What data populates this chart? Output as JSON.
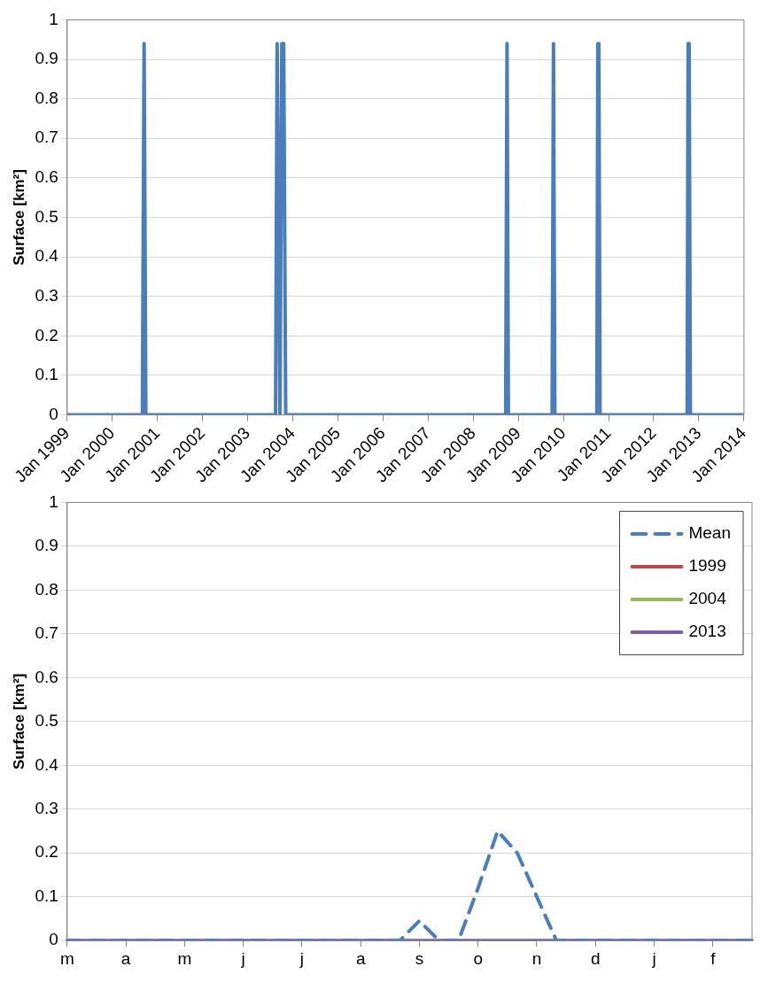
{
  "chart_data": [
    {
      "type": "line",
      "ylabel": "Surface [km²]",
      "xlim": [
        "1999-01",
        "2014-01"
      ],
      "ylim": [
        0,
        1
      ],
      "xticks": [
        {
          "value": "1999-01",
          "label": "Jan 1999"
        },
        {
          "value": "2000-01",
          "label": "Jan 2000"
        },
        {
          "value": "2001-01",
          "label": "Jan 2001"
        },
        {
          "value": "2002-01",
          "label": "Jan 2002"
        },
        {
          "value": "2003-01",
          "label": "Jan 2003"
        },
        {
          "value": "2004-01",
          "label": "Jan 2004"
        },
        {
          "value": "2005-01",
          "label": "Jan 2005"
        },
        {
          "value": "2006-01",
          "label": "Jan 2006"
        },
        {
          "value": "2007-01",
          "label": "Jan 2007"
        },
        {
          "value": "2008-01",
          "label": "Jan 2008"
        },
        {
          "value": "2009-01",
          "label": "Jan 2009"
        },
        {
          "value": "2010-01",
          "label": "Jan 2010"
        },
        {
          "value": "2011-01",
          "label": "Jan 2011"
        },
        {
          "value": "2012-01",
          "label": "Jan 2012"
        },
        {
          "value": "2013-01",
          "label": "Jan 2013"
        },
        {
          "value": "2014-01",
          "label": "Jan 2014"
        }
      ],
      "yticks": [
        0,
        0.1,
        0.2,
        0.3,
        0.4,
        0.5,
        0.6,
        0.7,
        0.8,
        0.9,
        1
      ],
      "grid": "y",
      "legend": false,
      "series": [
        {
          "color": "#4a7ebb",
          "x": [
            "1999-01-01",
            "2000-09-01",
            "2000-09-15",
            "2000-09-29",
            "2003-08-15",
            "2003-08-28",
            "2003-09-20",
            "2003-10-05",
            "2003-10-20",
            "2003-11-05",
            "2008-09-20",
            "2008-10-01",
            "2008-10-12",
            "2009-10-01",
            "2009-10-12",
            "2009-10-23",
            "2010-09-28",
            "2010-10-06",
            "2010-10-14",
            "2010-10-24",
            "2012-09-28",
            "2012-10-06",
            "2012-10-14",
            "2012-10-24",
            "2014-01-01"
          ],
          "values": [
            0,
            0,
            0.94,
            0,
            0,
            0.94,
            0,
            0.94,
            0.94,
            0,
            0,
            0.94,
            0,
            0,
            0.94,
            0,
            0,
            0.94,
            0.94,
            0,
            0,
            0.94,
            0.94,
            0,
            0
          ]
        }
      ]
    },
    {
      "type": "line",
      "ylabel": "Surface [km²]",
      "ylim": [
        0,
        1
      ],
      "categories": [
        "m",
        null,
        null,
        "a",
        null,
        null,
        "m",
        null,
        null,
        "j",
        null,
        null,
        "j",
        null,
        null,
        "a",
        null,
        null,
        "s",
        null,
        null,
        "o",
        null,
        null,
        "n",
        null,
        null,
        "d",
        null,
        null,
        "j",
        null,
        null,
        "f",
        null,
        null
      ],
      "yticks": [
        0,
        0.1,
        0.2,
        0.3,
        0.4,
        0.5,
        0.6,
        0.7,
        0.8,
        0.9,
        1
      ],
      "grid": "y",
      "legend": "top right",
      "series": [
        {
          "name": "Mean",
          "color": "#4a7ebb",
          "line_style": "dashed",
          "values": [
            0,
            0,
            0,
            0,
            0,
            0,
            0,
            0,
            0,
            0,
            0,
            0,
            0,
            0,
            0,
            0,
            0,
            0,
            0.045,
            0,
            0,
            0.12,
            0.25,
            0.2,
            0.1,
            0,
            0,
            0,
            0,
            0,
            0,
            0,
            0,
            0,
            0,
            0
          ]
        },
        {
          "name": "1999",
          "color": "#be4b48",
          "values": [
            null,
            null,
            null,
            null,
            null,
            null,
            null,
            null,
            null,
            null,
            null,
            null,
            null,
            null,
            null,
            null,
            null,
            null,
            null,
            null,
            null,
            null,
            null,
            null,
            null,
            null,
            null,
            null,
            null,
            null,
            null,
            null,
            null,
            null,
            null,
            null
          ]
        },
        {
          "name": "2004",
          "color": "#98b954",
          "values": [
            null,
            null,
            null,
            null,
            null,
            null,
            null,
            null,
            null,
            null,
            null,
            null,
            null,
            null,
            null,
            null,
            null,
            null,
            null,
            null,
            null,
            null,
            null,
            null,
            null,
            null,
            null,
            null,
            null,
            null,
            null,
            null,
            null,
            null,
            null,
            null
          ]
        },
        {
          "name": "2013",
          "color": "#7d60a0",
          "values": [
            0,
            0,
            0,
            0,
            0,
            0,
            0,
            0,
            0,
            0,
            0,
            0,
            0,
            0,
            0,
            0,
            0,
            0,
            0,
            0,
            0,
            0,
            0,
            0,
            0,
            0,
            0,
            0,
            0,
            0,
            0,
            0,
            0,
            0,
            0,
            0
          ]
        }
      ]
    }
  ]
}
